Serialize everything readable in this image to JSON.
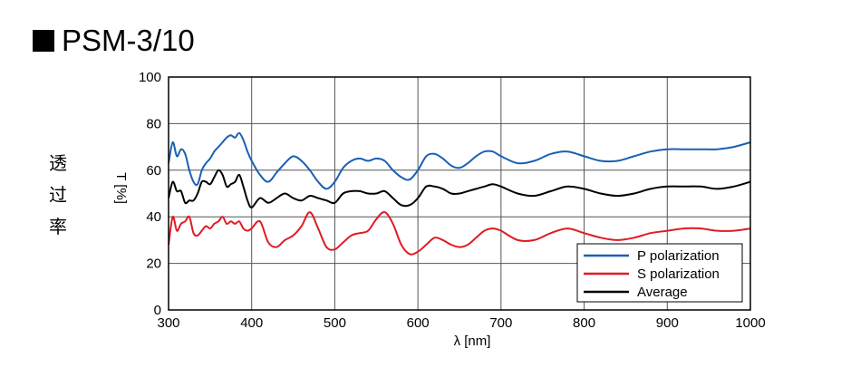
{
  "title": "PSM-3/10",
  "side_label_chars": [
    "透",
    "过",
    "率"
  ],
  "chart_data": {
    "type": "line",
    "xlabel": "λ [nm]",
    "ylabel": "T [%]",
    "xlim": [
      300,
      1000
    ],
    "ylim": [
      0,
      100
    ],
    "xticks": [
      300,
      400,
      500,
      600,
      700,
      800,
      900,
      1000
    ],
    "yticks": [
      0,
      20,
      40,
      60,
      80,
      100
    ],
    "grid": true,
    "legend_position": "bottom-right",
    "series": [
      {
        "name": "P polarization",
        "color": "#1a5fb4",
        "x": [
          300,
          305,
          310,
          315,
          320,
          325,
          330,
          335,
          340,
          345,
          350,
          355,
          360,
          365,
          370,
          375,
          380,
          385,
          390,
          395,
          400,
          410,
          420,
          430,
          440,
          450,
          460,
          470,
          480,
          490,
          500,
          510,
          520,
          530,
          540,
          550,
          560,
          570,
          580,
          590,
          600,
          610,
          620,
          630,
          640,
          650,
          660,
          670,
          680,
          690,
          700,
          720,
          740,
          760,
          780,
          800,
          820,
          840,
          860,
          880,
          900,
          920,
          940,
          960,
          980,
          1000
        ],
        "values": [
          63,
          72,
          66,
          69,
          67,
          60,
          55,
          54,
          60,
          63,
          65,
          68,
          70,
          72,
          74,
          75,
          74,
          76,
          73,
          68,
          64,
          58,
          55,
          59,
          63,
          66,
          64,
          60,
          55,
          52,
          55,
          61,
          64,
          65,
          64,
          65,
          64,
          60,
          57,
          56,
          60,
          66,
          67,
          65,
          62,
          61,
          63,
          66,
          68,
          68,
          66,
          63,
          64,
          67,
          68,
          66,
          64,
          64,
          66,
          68,
          69,
          69,
          69,
          69,
          70,
          72
        ]
      },
      {
        "name": "S polarization",
        "color": "#e01b24",
        "x": [
          300,
          305,
          310,
          315,
          320,
          325,
          330,
          335,
          340,
          345,
          350,
          355,
          360,
          365,
          370,
          375,
          380,
          385,
          390,
          395,
          400,
          410,
          420,
          430,
          440,
          450,
          460,
          470,
          480,
          490,
          500,
          510,
          520,
          530,
          540,
          550,
          560,
          570,
          580,
          590,
          600,
          610,
          620,
          630,
          640,
          650,
          660,
          670,
          680,
          690,
          700,
          720,
          740,
          760,
          780,
          800,
          820,
          840,
          860,
          880,
          900,
          920,
          940,
          960,
          980,
          1000
        ],
        "values": [
          28,
          40,
          34,
          37,
          38,
          40,
          33,
          32,
          34,
          36,
          35,
          37,
          38,
          40,
          37,
          38,
          37,
          38,
          35,
          34,
          35,
          38,
          29,
          27,
          30,
          32,
          36,
          42,
          35,
          27,
          26,
          29,
          32,
          33,
          34,
          39,
          42,
          37,
          28,
          24,
          25,
          28,
          31,
          30,
          28,
          27,
          28,
          31,
          34,
          35,
          34,
          30,
          30,
          33,
          35,
          33,
          31,
          30,
          31,
          33,
          34,
          35,
          35,
          34,
          34,
          35
        ]
      },
      {
        "name": "Average",
        "color": "#000000",
        "x": [
          300,
          305,
          310,
          315,
          320,
          325,
          330,
          335,
          340,
          345,
          350,
          355,
          360,
          365,
          370,
          375,
          380,
          385,
          390,
          395,
          400,
          410,
          420,
          430,
          440,
          450,
          460,
          470,
          480,
          490,
          500,
          510,
          520,
          530,
          540,
          550,
          560,
          570,
          580,
          590,
          600,
          610,
          620,
          630,
          640,
          650,
          660,
          670,
          680,
          690,
          700,
          720,
          740,
          760,
          780,
          800,
          820,
          840,
          860,
          880,
          900,
          920,
          940,
          960,
          980,
          1000
        ],
        "values": [
          48,
          55,
          51,
          51,
          46,
          47,
          47,
          50,
          55,
          55,
          54,
          57,
          60,
          58,
          53,
          54,
          55,
          58,
          53,
          47,
          44,
          48,
          46,
          48,
          50,
          48,
          47,
          49,
          48,
          47,
          46,
          50,
          51,
          51,
          50,
          50,
          51,
          48,
          45,
          45,
          48,
          53,
          53,
          52,
          50,
          50,
          51,
          52,
          53,
          54,
          53,
          50,
          49,
          51,
          53,
          52,
          50,
          49,
          50,
          52,
          53,
          53,
          53,
          52,
          53,
          55
        ]
      }
    ]
  }
}
